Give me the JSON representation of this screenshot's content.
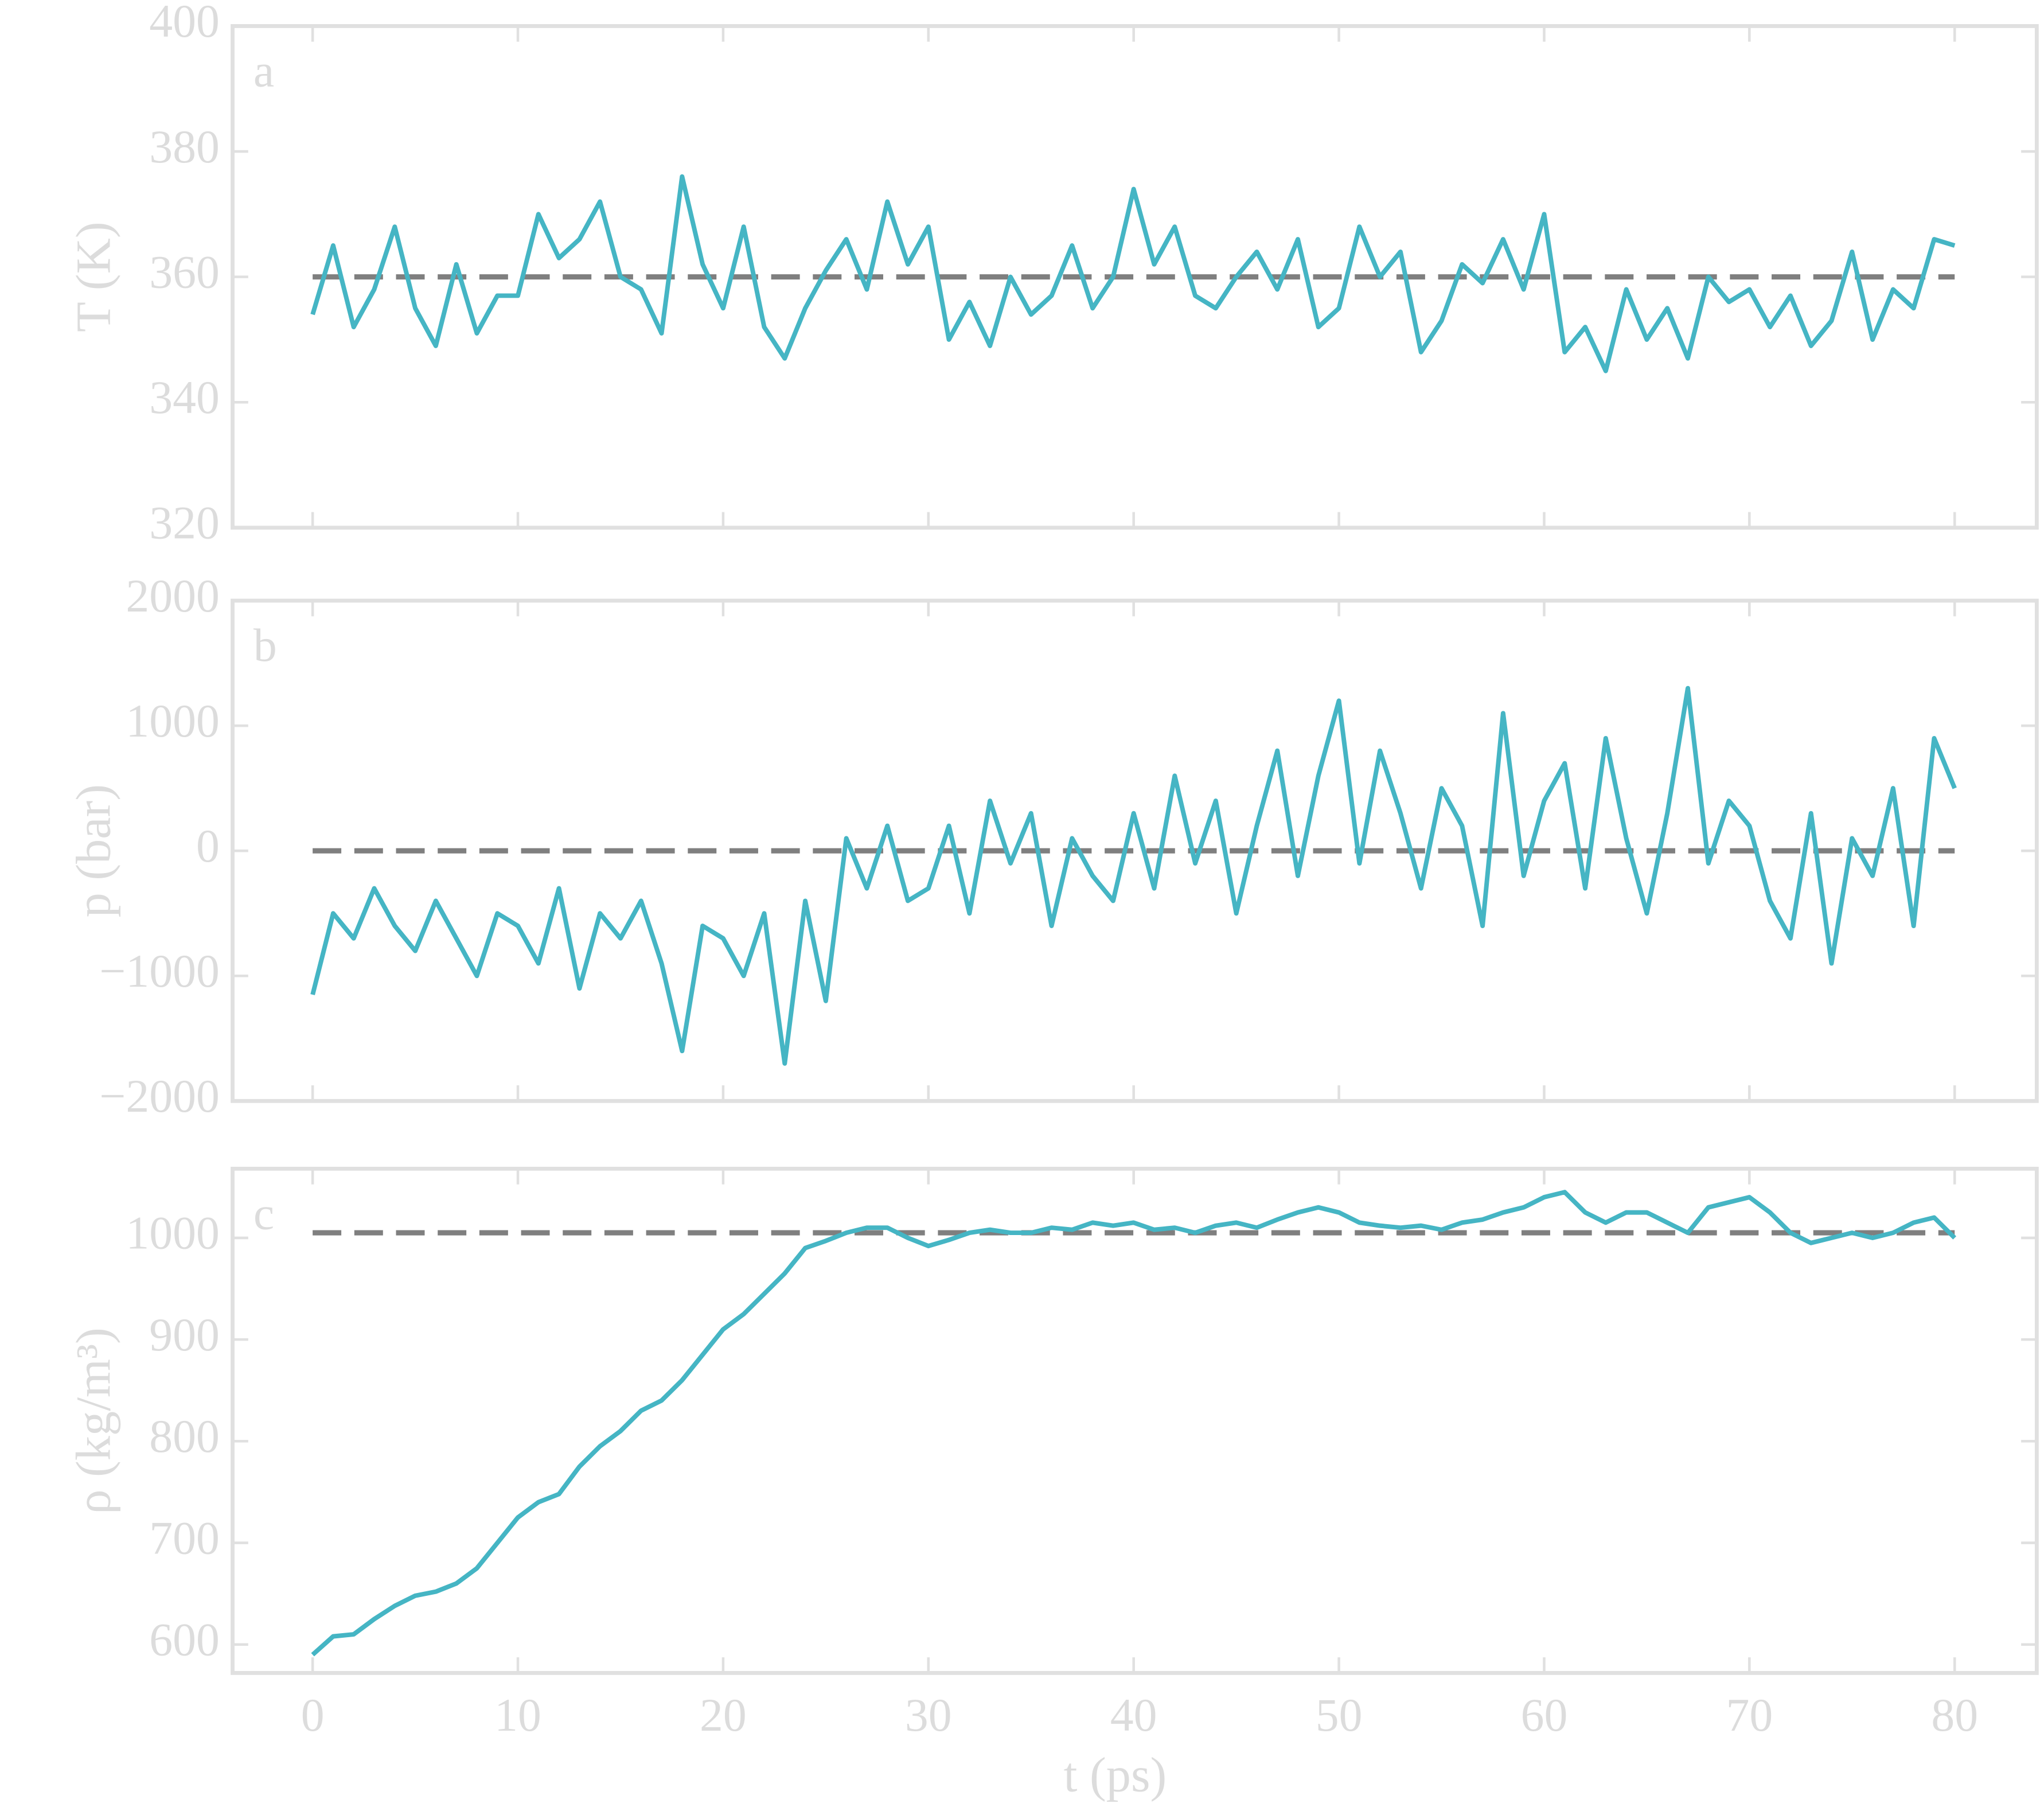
{
  "chart_data": [
    {
      "type": "line",
      "panel_label": "a",
      "ylabel": "T (K)",
      "color": "#45b5c4",
      "x": [
        0,
        1,
        2,
        3,
        4,
        5,
        6,
        7,
        8,
        9,
        10,
        11,
        12,
        13,
        14,
        15,
        16,
        17,
        18,
        19,
        20,
        21,
        22,
        23,
        24,
        25,
        26,
        27,
        28,
        29,
        30,
        31,
        32,
        33,
        34,
        35,
        36,
        37,
        38,
        39,
        40,
        41,
        42,
        43,
        44,
        45,
        46,
        47,
        48,
        49,
        50,
        51,
        52,
        53,
        54,
        55,
        56,
        57,
        58,
        59,
        60,
        61,
        62,
        63,
        64,
        65,
        66,
        67,
        68,
        69,
        70,
        71,
        72,
        73,
        74,
        75,
        76,
        77,
        78,
        79,
        80
      ],
      "values": [
        354,
        365,
        352,
        358,
        368,
        355,
        349,
        362,
        351,
        357,
        357,
        370,
        363,
        366,
        372,
        360,
        358,
        351,
        376,
        362,
        355,
        368,
        352,
        347,
        355,
        361,
        366,
        358,
        372,
        362,
        368,
        350,
        356,
        349,
        360,
        354,
        357,
        365,
        355,
        360,
        374,
        362,
        368,
        357,
        355,
        360,
        364,
        358,
        366,
        352,
        355,
        368,
        360,
        364,
        348,
        353,
        362,
        359,
        366,
        358,
        370,
        348,
        352,
        345,
        358,
        350,
        355,
        347,
        360,
        356,
        358,
        352,
        357,
        349,
        353,
        364,
        350,
        358,
        355,
        366,
        365
      ],
      "reference_line": {
        "value": 360,
        "color": "#7f7f7f"
      },
      "xlim": [
        -3.9,
        84
      ],
      "xticks": [
        0,
        10,
        20,
        30,
        40,
        50,
        60,
        70,
        80
      ],
      "xtick_labels": false,
      "ylim": [
        320,
        400
      ],
      "yticks": [
        320,
        340,
        360,
        380,
        400
      ],
      "grid": false
    },
    {
      "type": "line",
      "panel_label": "b",
      "ylabel": "p (bar)",
      "color": "#45b5c4",
      "x": [
        0,
        1,
        2,
        3,
        4,
        5,
        6,
        7,
        8,
        9,
        10,
        11,
        12,
        13,
        14,
        15,
        16,
        17,
        18,
        19,
        20,
        21,
        22,
        23,
        24,
        25,
        26,
        27,
        28,
        29,
        30,
        31,
        32,
        33,
        34,
        35,
        36,
        37,
        38,
        39,
        40,
        41,
        42,
        43,
        44,
        45,
        46,
        47,
        48,
        49,
        50,
        51,
        52,
        53,
        54,
        55,
        56,
        57,
        58,
        59,
        60,
        61,
        62,
        63,
        64,
        65,
        66,
        67,
        68,
        69,
        70,
        71,
        72,
        73,
        74,
        75,
        76,
        77,
        78,
        79,
        80
      ],
      "values": [
        -1150,
        -500,
        -700,
        -300,
        -600,
        -800,
        -400,
        -700,
        -1000,
        -500,
        -600,
        -900,
        -300,
        -1100,
        -500,
        -700,
        -400,
        -900,
        -1600,
        -600,
        -700,
        -1000,
        -500,
        -1700,
        -400,
        -1200,
        100,
        -300,
        200,
        -400,
        -300,
        200,
        -500,
        400,
        -100,
        300,
        -600,
        100,
        -200,
        -400,
        300,
        -300,
        600,
        -100,
        400,
        -500,
        200,
        800,
        -200,
        600,
        1200,
        -100,
        800,
        300,
        -300,
        500,
        200,
        -600,
        1100,
        -200,
        400,
        700,
        -300,
        900,
        100,
        -500,
        300,
        1300,
        -100,
        400,
        200,
        -400,
        -700,
        300,
        -900,
        100,
        -200,
        500,
        -600,
        900,
        500
      ],
      "reference_line": {
        "value": 0,
        "color": "#7f7f7f"
      },
      "xlim": [
        -3.9,
        84
      ],
      "xticks": [
        0,
        10,
        20,
        30,
        40,
        50,
        60,
        70,
        80
      ],
      "xtick_labels": false,
      "ylim": [
        -2000,
        2000
      ],
      "yticks": [
        {
          "value": -2000,
          "label": "−2000"
        },
        {
          "value": -1000,
          "label": "−1000"
        },
        0,
        1000,
        2000
      ],
      "grid": false
    },
    {
      "type": "line",
      "panel_label": "c",
      "ylabel": "ρ (kg/m³)",
      "xlabel": "t (ps)",
      "color": "#45b5c4",
      "x": [
        0,
        1,
        2,
        3,
        4,
        5,
        6,
        7,
        8,
        9,
        10,
        11,
        12,
        13,
        14,
        15,
        16,
        17,
        18,
        19,
        20,
        21,
        22,
        23,
        24,
        25,
        26,
        27,
        28,
        29,
        30,
        31,
        32,
        33,
        34,
        35,
        36,
        37,
        38,
        39,
        40,
        41,
        42,
        43,
        44,
        45,
        46,
        47,
        48,
        49,
        50,
        51,
        52,
        53,
        54,
        55,
        56,
        57,
        58,
        59,
        60,
        61,
        62,
        63,
        64,
        65,
        66,
        67,
        68,
        69,
        70,
        71,
        72,
        73,
        74,
        75,
        76,
        77,
        78,
        79,
        80
      ],
      "values": [
        590,
        608,
        610,
        625,
        638,
        648,
        652,
        660,
        675,
        700,
        725,
        740,
        748,
        775,
        795,
        810,
        830,
        840,
        860,
        885,
        910,
        925,
        945,
        965,
        990,
        997,
        1005,
        1010,
        1010,
        1000,
        992,
        998,
        1005,
        1008,
        1005,
        1005,
        1010,
        1008,
        1015,
        1012,
        1015,
        1008,
        1010,
        1005,
        1012,
        1015,
        1010,
        1018,
        1025,
        1030,
        1025,
        1015,
        1012,
        1010,
        1012,
        1008,
        1015,
        1018,
        1025,
        1030,
        1040,
        1045,
        1025,
        1015,
        1025,
        1025,
        1015,
        1005,
        1030,
        1035,
        1040,
        1025,
        1005,
        995,
        1000,
        1005,
        1000,
        1005,
        1015,
        1020,
        1000
      ],
      "reference_line": {
        "value": 1005,
        "color": "#7f7f7f"
      },
      "xlim": [
        -3.9,
        84
      ],
      "xticks": [
        0,
        10,
        20,
        30,
        40,
        50,
        60,
        70,
        80
      ],
      "xtick_labels": true,
      "ylim": [
        572,
        1068
      ],
      "yticks": [
        600,
        700,
        800,
        900,
        1000
      ],
      "grid": false
    }
  ]
}
